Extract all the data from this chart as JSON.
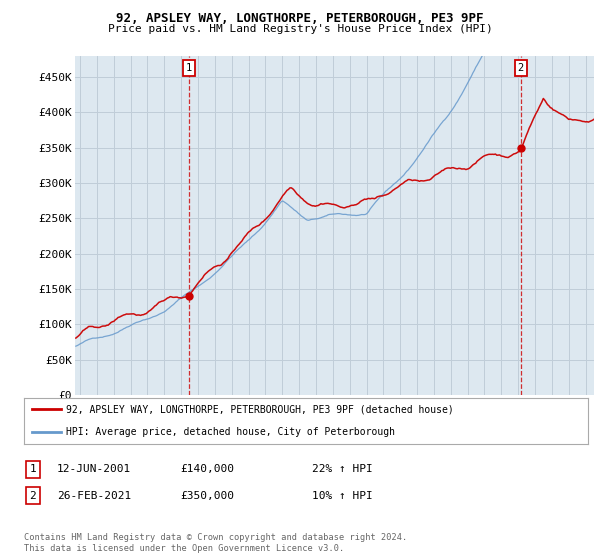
{
  "title_line1": "92, APSLEY WAY, LONGTHORPE, PETERBOROUGH, PE3 9PF",
  "title_line2": "Price paid vs. HM Land Registry's House Price Index (HPI)",
  "ylim": [
    0,
    480000
  ],
  "yticks": [
    0,
    50000,
    100000,
    150000,
    200000,
    250000,
    300000,
    350000,
    400000,
    450000
  ],
  "ytick_labels": [
    "£0",
    "£50K",
    "£100K",
    "£150K",
    "£200K",
    "£250K",
    "£300K",
    "£350K",
    "£400K",
    "£450K"
  ],
  "xlim_start": 1994.7,
  "xlim_end": 2025.5,
  "xticks": [
    1995,
    1996,
    1997,
    1998,
    1999,
    2000,
    2001,
    2002,
    2003,
    2004,
    2005,
    2006,
    2007,
    2008,
    2009,
    2010,
    2011,
    2012,
    2013,
    2014,
    2015,
    2016,
    2017,
    2018,
    2019,
    2020,
    2021,
    2022,
    2023,
    2024,
    2025
  ],
  "red_line_color": "#cc0000",
  "blue_line_color": "#6699cc",
  "bg_color": "#dde8f0",
  "plot_bg": "#dde8f0",
  "vline1_x": 2001.44,
  "vline2_x": 2021.15,
  "marker1_label": "1",
  "marker2_label": "2",
  "legend_red": "92, APSLEY WAY, LONGTHORPE, PETERBOROUGH, PE3 9PF (detached house)",
  "legend_blue": "HPI: Average price, detached house, City of Peterborough",
  "annotation1_num": "1",
  "annotation1_date": "12-JUN-2001",
  "annotation1_price": "£140,000",
  "annotation1_hpi": "22% ↑ HPI",
  "annotation2_num": "2",
  "annotation2_date": "26-FEB-2021",
  "annotation2_price": "£350,000",
  "annotation2_hpi": "10% ↑ HPI",
  "footer": "Contains HM Land Registry data © Crown copyright and database right 2024.\nThis data is licensed under the Open Government Licence v3.0.",
  "grid_color": "#c0cdd8"
}
